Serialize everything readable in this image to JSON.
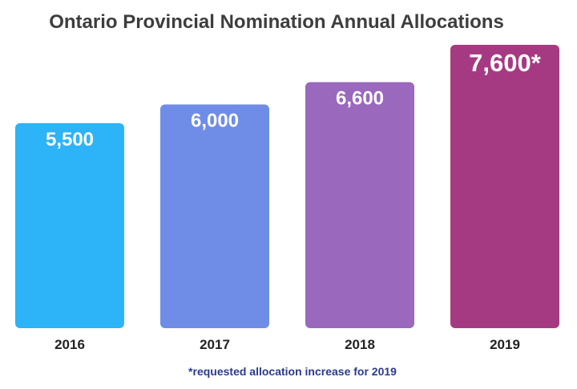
{
  "chart_data": {
    "type": "bar",
    "title": "Ontario Provincial Nomination Annual Allocations",
    "categories": [
      "2016",
      "2017",
      "2018",
      "2019"
    ],
    "values": [
      5500,
      6000,
      6600,
      7600
    ],
    "value_labels": [
      "5,500",
      "6,000",
      "6,600",
      "7,600*"
    ],
    "colors": [
      "#2db3f7",
      "#6f8de6",
      "#9a68bd",
      "#a63a82"
    ],
    "footnote": "*requested allocation increase for 2019",
    "ylim": [
      0,
      7600
    ],
    "grid": false,
    "legend": "none"
  }
}
